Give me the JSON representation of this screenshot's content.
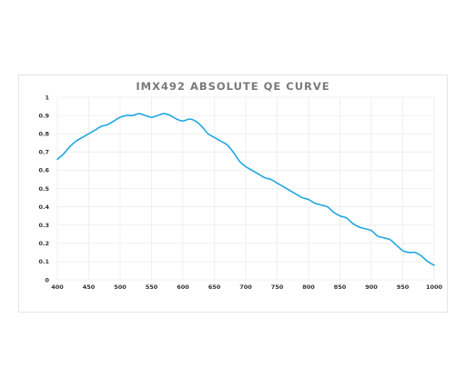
{
  "chart_data": {
    "type": "line",
    "title": "IMX492 ABSOLUTE QE CURVE",
    "xlabel": "",
    "ylabel": "",
    "xlim": [
      400,
      1000
    ],
    "ylim": [
      0,
      1
    ],
    "grid": true,
    "x_ticks": [
      400,
      450,
      500,
      550,
      600,
      650,
      700,
      750,
      800,
      850,
      900,
      950,
      1000
    ],
    "y_ticks": [
      0,
      0.1,
      0.2,
      0.3,
      0.4,
      0.5,
      0.6,
      0.7,
      0.8,
      0.9,
      1
    ],
    "series": [
      {
        "color": "#1ea7e1",
        "x": [
          400,
          410,
          420,
          430,
          440,
          450,
          460,
          470,
          480,
          490,
          500,
          510,
          520,
          530,
          540,
          550,
          560,
          570,
          580,
          590,
          600,
          610,
          620,
          630,
          640,
          650,
          660,
          670,
          680,
          690,
          700,
          710,
          720,
          730,
          740,
          750,
          760,
          770,
          780,
          790,
          800,
          810,
          820,
          830,
          840,
          850,
          860,
          870,
          880,
          890,
          900,
          910,
          920,
          930,
          940,
          950,
          960,
          970,
          980,
          990,
          1000
        ],
        "y": [
          0.66,
          0.69,
          0.73,
          0.76,
          0.78,
          0.8,
          0.82,
          0.84,
          0.85,
          0.87,
          0.89,
          0.9,
          0.9,
          0.91,
          0.9,
          0.89,
          0.9,
          0.91,
          0.9,
          0.88,
          0.87,
          0.88,
          0.87,
          0.84,
          0.8,
          0.78,
          0.76,
          0.74,
          0.7,
          0.65,
          0.62,
          0.6,
          0.58,
          0.56,
          0.55,
          0.53,
          0.51,
          0.49,
          0.47,
          0.45,
          0.44,
          0.42,
          0.41,
          0.4,
          0.37,
          0.35,
          0.34,
          0.31,
          0.29,
          0.28,
          0.27,
          0.24,
          0.23,
          0.22,
          0.19,
          0.16,
          0.15,
          0.15,
          0.13,
          0.1,
          0.08
        ]
      }
    ]
  }
}
